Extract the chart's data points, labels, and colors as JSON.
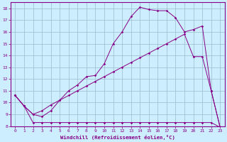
{
  "xlabel": "Windchill (Refroidissement éolien,°C)",
  "bg_color": "#cceeff",
  "line_color": "#880088",
  "grid_color": "#99bbcc",
  "xlim": [
    -0.5,
    23.5
  ],
  "ylim": [
    8,
    18.5
  ],
  "xticks": [
    0,
    1,
    2,
    3,
    4,
    5,
    6,
    7,
    8,
    9,
    10,
    11,
    12,
    13,
    14,
    15,
    16,
    17,
    18,
    19,
    20,
    21,
    22,
    23
  ],
  "yticks": [
    8,
    9,
    10,
    11,
    12,
    13,
    14,
    15,
    16,
    17,
    18
  ],
  "line1_x": [
    0,
    1,
    2,
    3,
    4,
    5,
    6,
    7,
    8,
    9,
    10,
    11,
    12,
    13,
    14,
    15,
    16,
    17,
    18,
    19,
    20,
    21,
    22,
    23
  ],
  "line1_y": [
    10.6,
    9.7,
    8.3,
    8.3,
    8.3,
    8.3,
    8.3,
    8.3,
    8.3,
    8.3,
    8.3,
    8.3,
    8.3,
    8.3,
    8.3,
    8.3,
    8.3,
    8.3,
    8.3,
    8.3,
    8.3,
    8.3,
    8.3,
    7.9
  ],
  "line2_x": [
    0,
    1,
    2,
    3,
    4,
    5,
    6,
    7,
    8,
    9,
    10,
    11,
    12,
    13,
    14,
    15,
    16,
    17,
    18,
    19,
    20,
    21,
    22,
    23
  ],
  "line2_y": [
    10.6,
    9.7,
    9.0,
    9.3,
    9.8,
    10.2,
    10.6,
    11.0,
    11.4,
    11.8,
    12.2,
    12.6,
    13.0,
    13.4,
    13.8,
    14.2,
    14.6,
    15.0,
    15.4,
    15.8,
    13.9,
    13.9,
    11.0,
    7.9
  ],
  "line3_x": [
    0,
    1,
    2,
    3,
    4,
    5,
    6,
    7,
    8,
    9,
    10,
    11,
    12,
    13,
    14,
    15,
    16,
    17,
    18,
    19,
    20,
    21,
    22,
    23
  ],
  "line3_y": [
    10.6,
    9.7,
    9.0,
    8.8,
    9.3,
    10.2,
    11.0,
    11.5,
    12.2,
    12.3,
    13.3,
    15.0,
    16.0,
    17.3,
    18.1,
    17.9,
    17.8,
    17.8,
    17.2,
    16.0,
    16.2,
    16.5,
    11.0,
    7.9
  ]
}
